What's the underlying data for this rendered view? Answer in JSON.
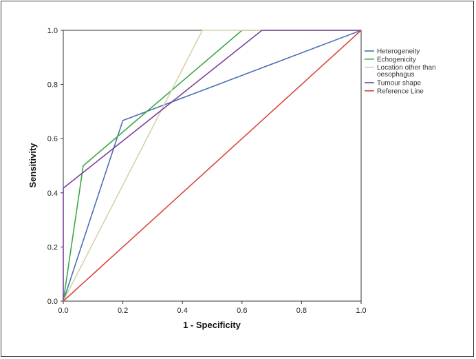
{
  "chart_data": {
    "type": "line",
    "xlabel": "1 - Specificity",
    "ylabel": "Sensitivity",
    "xlim": [
      0,
      1
    ],
    "ylim": [
      0,
      1
    ],
    "x_ticks": [
      "0.0",
      "0.2",
      "0.4",
      "0.6",
      "0.8",
      "1.0"
    ],
    "y_ticks": [
      "0.0",
      "0.2",
      "0.4",
      "0.6",
      "0.8",
      "1.0"
    ],
    "grid": false,
    "legend_position": "right",
    "series": [
      {
        "name": "Heterogeneity",
        "color": "#4a6fb5",
        "points": [
          [
            0.0,
            0.0
          ],
          [
            0.2,
            0.667
          ],
          [
            1.0,
            1.0
          ]
        ]
      },
      {
        "name": "Echogenicity",
        "color": "#3aa845",
        "points": [
          [
            0.0,
            0.0
          ],
          [
            0.067,
            0.5
          ],
          [
            0.6,
            1.0
          ],
          [
            1.0,
            1.0
          ]
        ]
      },
      {
        "name_lines": [
          "Location other than",
          "oesophagus"
        ],
        "color": "#d6d2a8",
        "points": [
          [
            0.0,
            0.0
          ],
          [
            0.467,
            1.0
          ],
          [
            1.0,
            1.0
          ]
        ]
      },
      {
        "name": "Tumour shape",
        "color": "#7a3f9a",
        "points": [
          [
            0.0,
            0.0
          ],
          [
            0.0,
            0.417
          ],
          [
            0.667,
            1.0
          ],
          [
            1.0,
            1.0
          ]
        ]
      },
      {
        "name": "Reference Line",
        "color": "#d9453a",
        "points": [
          [
            0.0,
            0.0
          ],
          [
            1.0,
            1.0
          ]
        ]
      }
    ]
  }
}
